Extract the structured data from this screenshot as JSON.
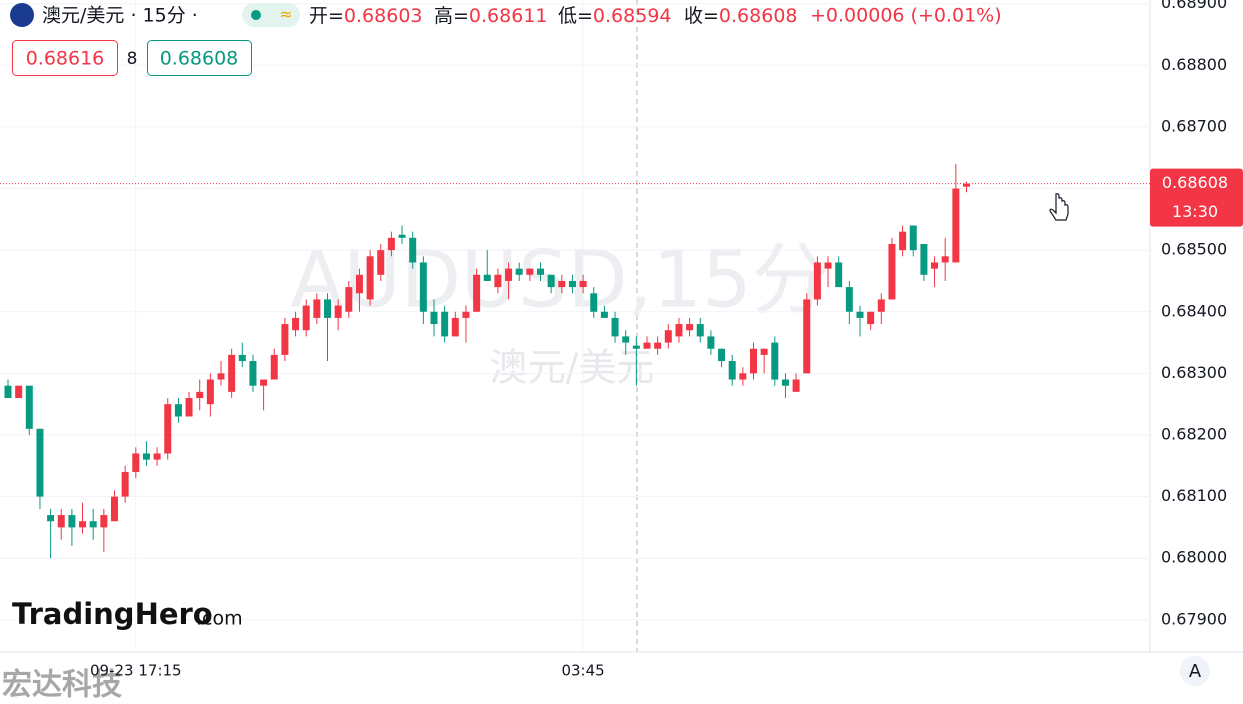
{
  "chart_data": {
    "type": "candlestick",
    "symbol": "澳元/美元 · 15分 ·",
    "ohlc_header": [
      {
        "label": "开=",
        "value": 0.68603
      },
      {
        "label": "高=",
        "value": 0.68611
      },
      {
        "label": "低=",
        "value": 0.68594
      },
      {
        "label": "收=",
        "value": 0.68608
      }
    ],
    "change": "+0.00006 (+0.01%)",
    "bid": "0.68616",
    "spread": "8",
    "ask": "0.68608",
    "watermark": "AUDUSD,15分",
    "watermark_sub": "澳元/美元",
    "logo": "TradingHero",
    "logo_suffix": ".com",
    "footer_mark": "宏达科技",
    "scale_button": "A",
    "last_price": {
      "value": 0.68608,
      "label": "0.68608"
    },
    "last_time": "13:30",
    "up_color": "#f23645",
    "down_color": "#089981",
    "categories": [
      null,
      null,
      null,
      null,
      null,
      null,
      null,
      null,
      null,
      null,
      null,
      null,
      "09-23 17:15",
      null,
      null,
      null,
      null,
      null,
      null,
      null,
      null,
      null,
      null,
      null,
      null,
      null,
      null,
      null,
      null,
      null,
      null,
      null,
      null,
      null,
      null,
      null,
      null,
      null,
      null,
      null,
      null,
      null,
      null,
      null,
      null,
      null,
      null,
      null,
      null,
      null,
      null,
      null,
      null,
      null,
      "03:45",
      null,
      null,
      null,
      null,
      null,
      null,
      null,
      null,
      null,
      null,
      null,
      null,
      null,
      null,
      null,
      null,
      null,
      null,
      null,
      null,
      null,
      null,
      null,
      null,
      null,
      null,
      null,
      null,
      null,
      null,
      null,
      null,
      null,
      null,
      null,
      null
    ],
    "open": [
      0.6828,
      0.6826,
      0.6828,
      0.6821,
      0.6807,
      0.6805,
      0.6807,
      0.6805,
      0.6806,
      0.6805,
      0.6806,
      0.681,
      0.6814,
      0.6817,
      0.6816,
      0.6817,
      0.6825,
      0.6823,
      0.6826,
      0.6825,
      0.6829,
      0.6827,
      0.6833,
      0.6832,
      0.6828,
      0.6829,
      0.6833,
      0.6837,
      0.6837,
      0.6839,
      0.6842,
      0.6839,
      0.684,
      0.6843,
      0.6842,
      0.6846,
      0.685,
      0.68525,
      0.6852,
      0.6848,
      0.684,
      0.684,
      0.6836,
      0.6839,
      0.684,
      0.6846,
      0.6844,
      0.6845,
      0.6847,
      0.6846,
      0.6847,
      0.6846,
      0.6844,
      0.6845,
      0.6844,
      0.6843,
      0.684,
      0.6839,
      0.6836,
      0.68345,
      0.6834,
      0.6834,
      0.6835,
      0.6836,
      0.6837,
      0.6838,
      0.6836,
      0.6834,
      0.6832,
      0.6829,
      0.683,
      0.6833,
      0.6835,
      0.6829,
      0.6827,
      0.683,
      0.6842,
      0.6847,
      0.6848,
      0.6844,
      0.684,
      0.6838,
      0.684,
      0.6842,
      0.685,
      0.6854,
      0.6851,
      0.6847,
      0.6848,
      0.6848,
      0.68603
    ],
    "high": [
      0.6829,
      0.6828,
      0.6828,
      0.6821,
      0.6808,
      0.6808,
      0.6808,
      0.6809,
      0.6808,
      0.6808,
      0.6811,
      0.6815,
      0.6818,
      0.6819,
      0.6818,
      0.6826,
      0.6826,
      0.6827,
      0.6829,
      0.683,
      0.6832,
      0.6834,
      0.6835,
      0.6833,
      0.6829,
      0.6834,
      0.6839,
      0.684,
      0.6842,
      0.6843,
      0.6843,
      0.6842,
      0.6845,
      0.6847,
      0.685,
      0.6851,
      0.6853,
      0.6854,
      0.6853,
      0.6849,
      0.6842,
      0.6841,
      0.684,
      0.6841,
      0.6847,
      0.685,
      0.6847,
      0.6848,
      0.6848,
      0.6847,
      0.6848,
      0.6846,
      0.6846,
      0.6846,
      0.6846,
      0.6844,
      0.6841,
      0.684,
      0.6837,
      0.6836,
      0.6836,
      0.6836,
      0.6838,
      0.6839,
      0.6839,
      0.6839,
      0.6837,
      0.6834,
      0.6833,
      0.6831,
      0.6835,
      0.6834,
      0.6836,
      0.683,
      0.683,
      0.6843,
      0.6849,
      0.6849,
      0.6849,
      0.6845,
      0.6841,
      0.684,
      0.6843,
      0.6852,
      0.6854,
      0.6854,
      0.6851,
      0.6849,
      0.6852,
      0.6864,
      0.68611
    ],
    "low": [
      0.6826,
      0.6826,
      0.682,
      0.6808,
      0.68,
      0.6803,
      0.6802,
      0.6804,
      0.6803,
      0.6801,
      0.6806,
      0.6809,
      0.6813,
      0.6815,
      0.6815,
      0.6816,
      0.6822,
      0.6823,
      0.6824,
      0.6823,
      0.6828,
      0.6826,
      0.6831,
      0.6827,
      0.6824,
      0.6829,
      0.6832,
      0.6836,
      0.6836,
      0.6838,
      0.6832,
      0.6837,
      0.6839,
      0.684,
      0.6841,
      0.6845,
      0.6849,
      0.6851,
      0.6847,
      0.6838,
      0.6836,
      0.6835,
      0.6836,
      0.6835,
      0.684,
      0.6845,
      0.6843,
      0.6842,
      0.6845,
      0.6845,
      0.6845,
      0.6843,
      0.6843,
      0.6843,
      0.6843,
      0.6839,
      0.6839,
      0.6835,
      0.6833,
      0.6828,
      0.6834,
      0.6833,
      0.6834,
      0.6835,
      0.6836,
      0.6835,
      0.6833,
      0.6831,
      0.6828,
      0.6828,
      0.6829,
      0.683,
      0.6828,
      0.6826,
      0.6827,
      0.683,
      0.6841,
      0.6844,
      0.6844,
      0.6838,
      0.6836,
      0.6837,
      0.6838,
      0.6842,
      0.6849,
      0.6849,
      0.6845,
      0.6844,
      0.6845,
      0.6848,
      0.68594
    ],
    "close": [
      0.6826,
      0.6828,
      0.6821,
      0.681,
      0.6806,
      0.6807,
      0.6805,
      0.6806,
      0.6805,
      0.6807,
      0.681,
      0.6814,
      0.6817,
      0.6816,
      0.6817,
      0.6825,
      0.6823,
      0.6826,
      0.6827,
      0.6829,
      0.683,
      0.6833,
      0.6832,
      0.6828,
      0.6829,
      0.6833,
      0.6838,
      0.6839,
      0.6841,
      0.6842,
      0.6839,
      0.6841,
      0.6844,
      0.6846,
      0.6849,
      0.685,
      0.6852,
      0.6852,
      0.6848,
      0.684,
      0.6838,
      0.6836,
      0.6839,
      0.684,
      0.6846,
      0.6845,
      0.6846,
      0.6847,
      0.6846,
      0.6847,
      0.6846,
      0.6844,
      0.6845,
      0.6844,
      0.6845,
      0.684,
      0.6839,
      0.6836,
      0.6835,
      0.6834,
      0.6835,
      0.6835,
      0.6837,
      0.6838,
      0.6838,
      0.6836,
      0.6834,
      0.6832,
      0.6829,
      0.683,
      0.6834,
      0.6834,
      0.6829,
      0.6828,
      0.6829,
      0.6842,
      0.6848,
      0.6848,
      0.6844,
      0.684,
      0.6839,
      0.684,
      0.6842,
      0.6851,
      0.6853,
      0.685,
      0.6846,
      0.6848,
      0.6849,
      0.686,
      0.68608
    ],
    "ylim": [
      0.67851,
      0.68906
    ],
    "yticks": [
      {
        "value": 0.679,
        "label": "0.67900"
      },
      {
        "value": 0.68,
        "label": "0.68000"
      },
      {
        "value": 0.681,
        "label": "0.68100"
      },
      {
        "value": 0.682,
        "label": "0.68200"
      },
      {
        "value": 0.683,
        "label": "0.68300"
      },
      {
        "value": 0.684,
        "label": "0.68400"
      },
      {
        "value": 0.685,
        "label": "0.68500"
      },
      {
        "value": 0.686,
        "label": "0.68600"
      },
      {
        "value": 0.687,
        "label": "0.68700"
      },
      {
        "value": 0.688,
        "label": "0.68800"
      },
      {
        "value": 0.689,
        "label": "0.68900"
      }
    ],
    "grid": true
  }
}
